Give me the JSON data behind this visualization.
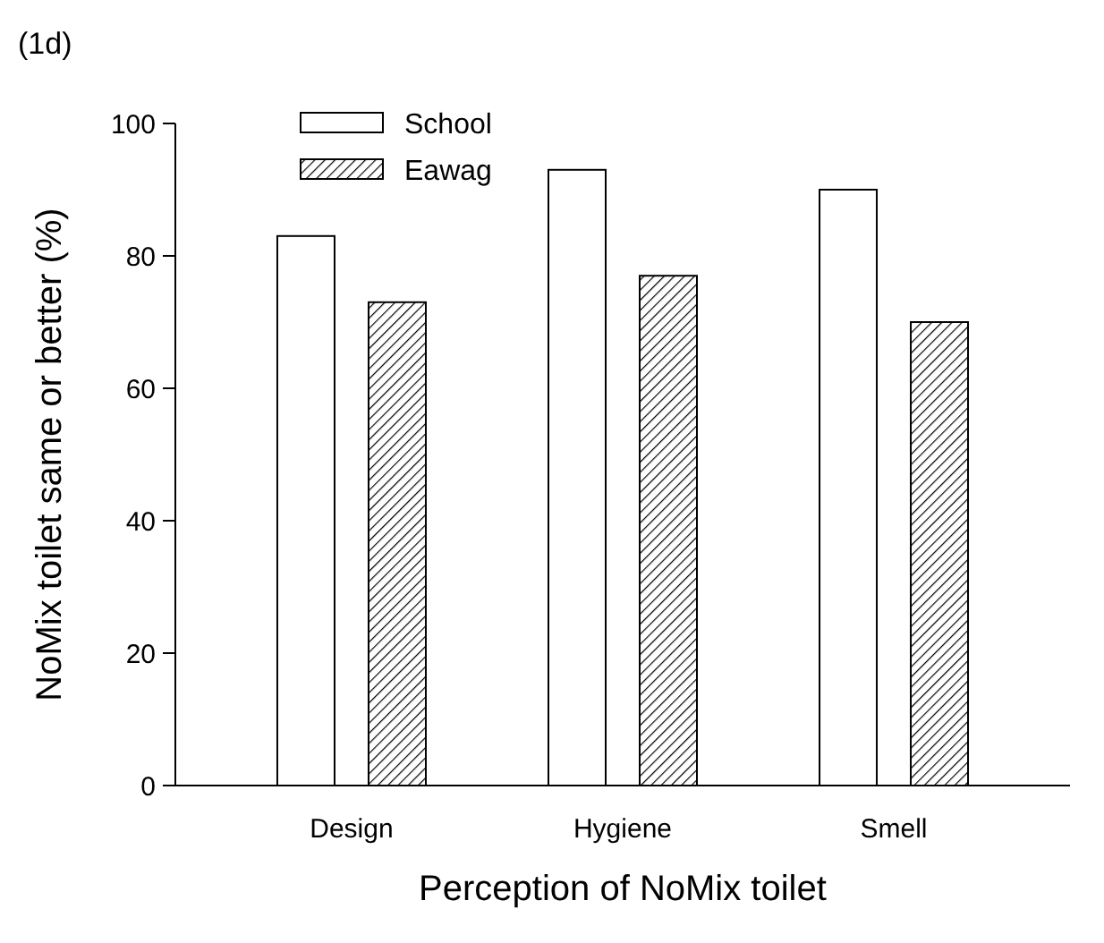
{
  "chart_data": {
    "type": "bar",
    "title": "(1d)",
    "xlabel": "Perception of NoMix toilet",
    "ylabel": "NoMix toilet same or better (%)",
    "categories": [
      "Design",
      "Hygiene",
      "Smell"
    ],
    "series": [
      {
        "name": "School",
        "color": "#000000",
        "values": [
          83,
          93,
          90
        ]
      },
      {
        "name": "Eawag",
        "color": "#000000",
        "values": [
          73,
          77,
          70
        ]
      }
    ],
    "ylim": [
      0,
      100
    ],
    "yticks": [
      0,
      20,
      40,
      60,
      80,
      100
    ],
    "legend": "top left",
    "grid": false
  }
}
